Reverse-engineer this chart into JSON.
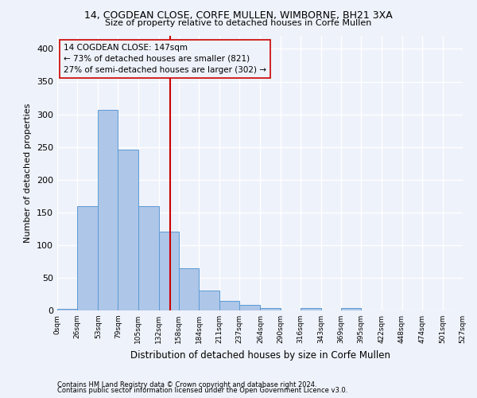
{
  "title1": "14, COGDEAN CLOSE, CORFE MULLEN, WIMBORNE, BH21 3XA",
  "title2": "Size of property relative to detached houses in Corfe Mullen",
  "xlabel": "Distribution of detached houses by size in Corfe Mullen",
  "ylabel": "Number of detached properties",
  "footnote1": "Contains HM Land Registry data © Crown copyright and database right 2024.",
  "footnote2": "Contains public sector information licensed under the Open Government Licence v3.0.",
  "bin_edges": [
    0,
    26,
    53,
    79,
    105,
    132,
    158,
    184,
    211,
    237,
    264,
    290,
    316,
    343,
    369,
    395,
    422,
    448,
    474,
    501,
    527
  ],
  "bar_heights": [
    3,
    160,
    307,
    246,
    160,
    120,
    65,
    31,
    15,
    8,
    4,
    0,
    4,
    0,
    4,
    0,
    0,
    0,
    0,
    0
  ],
  "bar_color": "#aec6e8",
  "bar_edge_color": "#5b9bd5",
  "property_size": 147,
  "annotation_title": "14 COGDEAN CLOSE: 147sqm",
  "annotation_line1": "← 73% of detached houses are smaller (821)",
  "annotation_line2": "27% of semi-detached houses are larger (302) →",
  "vline_color": "#cc0000",
  "ylim": [
    0,
    420
  ],
  "yticks": [
    0,
    50,
    100,
    150,
    200,
    250,
    300,
    350,
    400
  ],
  "background_color": "#eef2fa",
  "grid_color": "#ffffff"
}
